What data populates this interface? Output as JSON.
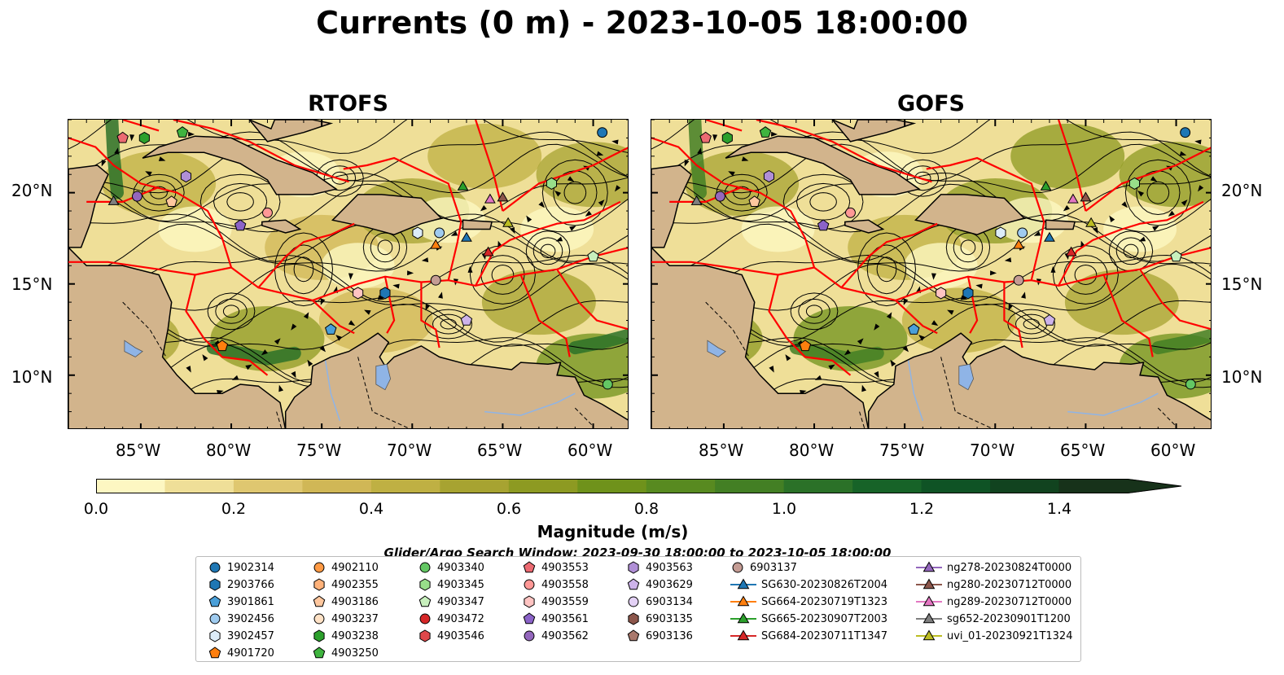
{
  "title": "Currents (0 m) - 2023-10-05 18:00:00",
  "panels": [
    {
      "name": "RTOFS"
    },
    {
      "name": "GOFS"
    }
  ],
  "axes": {
    "lat_ticks": [
      "20°N",
      "15°N",
      "10°N"
    ],
    "lon_ticks": [
      "85°W",
      "80°W",
      "75°W",
      "70°W",
      "65°W",
      "60°W"
    ],
    "lon_range": [
      -89,
      -58
    ],
    "lat_range": [
      7,
      24
    ]
  },
  "colorbar": {
    "label": "Magnitude (m/s)",
    "ticks": [
      "0.0",
      "0.2",
      "0.4",
      "0.6",
      "0.8",
      "1.0",
      "1.2",
      "1.4"
    ],
    "range": [
      0,
      1.5
    ],
    "extend": "max",
    "colors": [
      "#fdf7c2",
      "#efdf98",
      "#dfc770",
      "#d0b756",
      "#bfb043",
      "#a7a331",
      "#8d9a22",
      "#6f921b",
      "#588a20",
      "#437f24",
      "#2b7128",
      "#176328",
      "#0f5325",
      "#11431f",
      "#17321a"
    ]
  },
  "search_window": "Glider/Argo Search Window: 2023-09-30 18:00:00 to 2023-10-05 18:00:00",
  "colors": {
    "land": "#d2b48c",
    "ocean_low": "#fdf7c2",
    "eez_lines": "#ff0000",
    "streamlines": "#000000",
    "lakes": "#8fb4e6"
  },
  "legend": [
    {
      "label": "1902314",
      "marker": "circle",
      "color": "#1f77b4"
    },
    {
      "label": "2903766",
      "marker": "hexagon",
      "color": "#1f77b4"
    },
    {
      "label": "3901861",
      "marker": "pentagon",
      "color": "#4a9fd8"
    },
    {
      "label": "3902456",
      "marker": "circle",
      "color": "#9fcbef"
    },
    {
      "label": "3902457",
      "marker": "hexagon",
      "color": "#dcecf9"
    },
    {
      "label": "4901720",
      "marker": "pentagon",
      "color": "#ff7f0e"
    },
    {
      "label": "4902110",
      "marker": "circle",
      "color": "#ff9a44"
    },
    {
      "label": "4902355",
      "marker": "hexagon",
      "color": "#ffb27a"
    },
    {
      "label": "4903186",
      "marker": "pentagon",
      "color": "#ffc79e"
    },
    {
      "label": "4903237",
      "marker": "circle",
      "color": "#ffe2c6"
    },
    {
      "label": "4903238",
      "marker": "hexagon",
      "color": "#2ca02c"
    },
    {
      "label": "4903250",
      "marker": "pentagon",
      "color": "#3fb43f"
    },
    {
      "label": "4903340",
      "marker": "circle",
      "color": "#63c763"
    },
    {
      "label": "4903345",
      "marker": "hexagon",
      "color": "#98df8a"
    },
    {
      "label": "4903347",
      "marker": "pentagon",
      "color": "#c8f0bd"
    },
    {
      "label": "4903472",
      "marker": "circle",
      "color": "#d62728"
    },
    {
      "label": "4903546",
      "marker": "hexagon",
      "color": "#e0474a"
    },
    {
      "label": "4903553",
      "marker": "pentagon",
      "color": "#ec6a72"
    },
    {
      "label": "4903558",
      "marker": "circle",
      "color": "#ff9896"
    },
    {
      "label": "4903559",
      "marker": "hexagon",
      "color": "#ffc4c2"
    },
    {
      "label": "4903561",
      "marker": "pentagon",
      "color": "#8b63c8"
    },
    {
      "label": "4903562",
      "marker": "circle",
      "color": "#9467bd"
    },
    {
      "label": "4903563",
      "marker": "hexagon",
      "color": "#b08fd6"
    },
    {
      "label": "4903629",
      "marker": "pentagon",
      "color": "#cdb3ea"
    },
    {
      "label": "6903134",
      "marker": "circle",
      "color": "#e3d1f5"
    },
    {
      "label": "6903135",
      "marker": "hexagon",
      "color": "#8c564b"
    },
    {
      "label": "6903136",
      "marker": "pentagon",
      "color": "#a9786c"
    },
    {
      "label": "6903137",
      "marker": "circle",
      "color": "#c49c94"
    },
    {
      "label": "SG630-20230826T2004",
      "marker": "triangle",
      "color": "#1f77b4"
    },
    {
      "label": "SG664-20230719T1323",
      "marker": "triangle",
      "color": "#ff7f0e"
    },
    {
      "label": "SG665-20230907T2003",
      "marker": "triangle",
      "color": "#2ca02c"
    },
    {
      "label": "SG684-20230711T1347",
      "marker": "triangle",
      "color": "#d62728"
    },
    {
      "label": "ng278-20230824T0000",
      "marker": "triangle",
      "color": "#9467bd"
    },
    {
      "label": "ng280-20230712T0000",
      "marker": "triangle",
      "color": "#8c564b"
    },
    {
      "label": "ng289-20230712T0000",
      "marker": "triangle",
      "color": "#e377c2"
    },
    {
      "label": "sg652-20230901T1200",
      "marker": "triangle",
      "color": "#7f7f7f"
    },
    {
      "label": "uvi_01-20230921T1324",
      "marker": "triangle",
      "color": "#bcbd22"
    }
  ],
  "observations": [
    {
      "id": "1902314",
      "lon": -59.5,
      "lat": 23.3
    },
    {
      "id": "2903766",
      "lon": -71.5,
      "lat": 14.5
    },
    {
      "id": "3901861",
      "lon": -74.5,
      "lat": 12.5
    },
    {
      "id": "3902456",
      "lon": -68.5,
      "lat": 17.8
    },
    {
      "id": "3902457",
      "lon": -69.7,
      "lat": 17.8
    },
    {
      "id": "4901720",
      "lon": -80.5,
      "lat": 11.6
    },
    {
      "id": "4903186",
      "lon": -83.3,
      "lat": 19.5
    },
    {
      "id": "4903238",
      "lon": -84.8,
      "lat": 23.0
    },
    {
      "id": "4903250",
      "lon": -82.7,
      "lat": 23.3
    },
    {
      "id": "4903340",
      "lon": -59.2,
      "lat": 9.5
    },
    {
      "id": "4903345",
      "lon": -62.3,
      "lat": 20.5
    },
    {
      "id": "4903347",
      "lon": -60.0,
      "lat": 16.5
    },
    {
      "id": "4903553",
      "lon": -86.0,
      "lat": 23.0
    },
    {
      "id": "4903558",
      "lon": -78.0,
      "lat": 18.9
    },
    {
      "id": "4903559",
      "lon": -73.0,
      "lat": 14.5
    },
    {
      "id": "4903561",
      "lon": -79.5,
      "lat": 18.2
    },
    {
      "id": "4903562",
      "lon": -85.2,
      "lat": 19.8
    },
    {
      "id": "4903563",
      "lon": -82.5,
      "lat": 20.9
    },
    {
      "id": "4903629",
      "lon": -67.0,
      "lat": 13.0
    },
    {
      "id": "6903137",
      "lon": -68.7,
      "lat": 15.2
    },
    {
      "id": "SG630-20230826T2004",
      "lon": -67.0,
      "lat": 17.5
    },
    {
      "id": "SG664-20230719T1323",
      "lon": -68.7,
      "lat": 17.1
    },
    {
      "id": "SG665-20230907T2003",
      "lon": -67.2,
      "lat": 20.3
    },
    {
      "id": "SG684-20230711T1347",
      "lon": -65.8,
      "lat": 16.7
    },
    {
      "id": "ng280-20230712T0000",
      "lon": -65.0,
      "lat": 19.7
    },
    {
      "id": "ng289-20230712T0000",
      "lon": -65.7,
      "lat": 19.6
    },
    {
      "id": "sg652-20230901T1200",
      "lon": -86.5,
      "lat": 19.5
    },
    {
      "id": "uvi_01-20230921T1324",
      "lon": -64.7,
      "lat": 18.3
    }
  ]
}
